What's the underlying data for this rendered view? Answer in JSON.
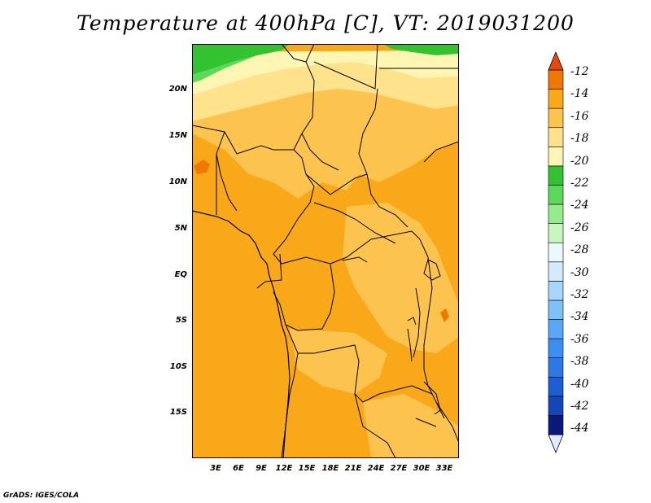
{
  "title": "Temperature at 400hPa [C], VT: 2019031200",
  "footer": "GrADS: IGES/COLA",
  "map": {
    "lat_labels": [
      "20N",
      "15N",
      "10N",
      "5N",
      "EQ",
      "5S",
      "10S",
      "15S"
    ],
    "lon_labels": [
      "3E",
      "6E",
      "9E",
      "12E",
      "15E",
      "18E",
      "21E",
      "24E",
      "27E",
      "30E",
      "33E"
    ]
  },
  "colorbar": {
    "labels": [
      "-12",
      "-14",
      "-16",
      "-18",
      "-20",
      "-22",
      "-24",
      "-26",
      "-28",
      "-30",
      "-32",
      "-34",
      "-36",
      "-38",
      "-40",
      "-42",
      "-44"
    ],
    "colors": [
      "#e0ecff",
      "#0a1a7a",
      "#1646b4",
      "#1e5ed2",
      "#2e78e6",
      "#3c8ef0",
      "#5aa8f5",
      "#7ec0f8",
      "#a6d6fb",
      "#d2ecfd",
      "#eaf8ff",
      "#c8f5c0",
      "#96ec8c",
      "#5cd85a",
      "#32c232",
      "#fff6b4",
      "#ffe28c",
      "#fcc44e",
      "#f8a818",
      "#f07800",
      "#e84810"
    ]
  },
  "colors": {
    "t_-16_-14": "#f8a818",
    "t_-18_-16": "#fcc44e",
    "t_-20_-18": "#ffe28c",
    "t_-22_-20": "#fff6b4",
    "t_-24_-22": "#32c232",
    "t_-14_-12": "#f07800"
  }
}
